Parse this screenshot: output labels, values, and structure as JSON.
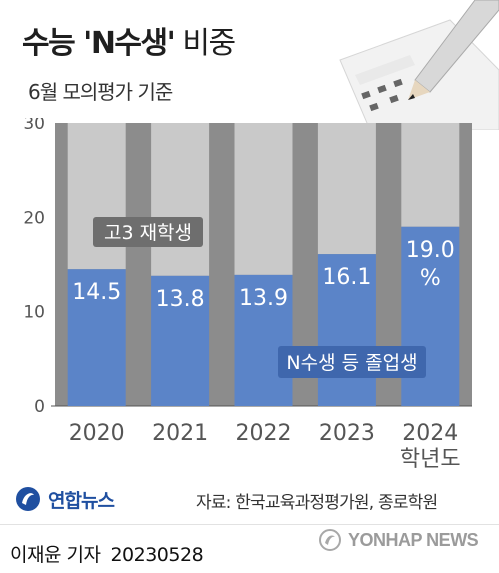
{
  "header": {
    "title_main": "수능 'N수생'",
    "title_suffix": " 비중",
    "subtitle": "6월 모의평가 기준"
  },
  "chart_data": {
    "type": "bar",
    "stacked": true,
    "categories": [
      "2020",
      "2021",
      "2022",
      "2023",
      "2024\n학년도"
    ],
    "ylim": [
      0,
      30
    ],
    "yticks": [
      0,
      10,
      20,
      30
    ],
    "series": [
      {
        "name": "N수생 등 졸업생",
        "values": [
          14.5,
          13.8,
          13.9,
          16.1,
          19.0
        ],
        "color": "#5b84c8",
        "labels": [
          "14.5",
          "13.8",
          "13.9",
          "16.1",
          "19.0\n%"
        ]
      },
      {
        "name": "고3 재학생",
        "values": [
          15.5,
          16.2,
          16.1,
          13.9,
          11.0
        ],
        "color": "#c9c9c9"
      }
    ],
    "background_color": "#8c8c8c",
    "grid": false
  },
  "footer": {
    "logo_text": "연합뉴스",
    "source": "자료: 한국교육과정평가원, 종로학원",
    "reporter": "이재윤 기자",
    "date": "20230528",
    "watermark": "YONHAP NEWS"
  }
}
